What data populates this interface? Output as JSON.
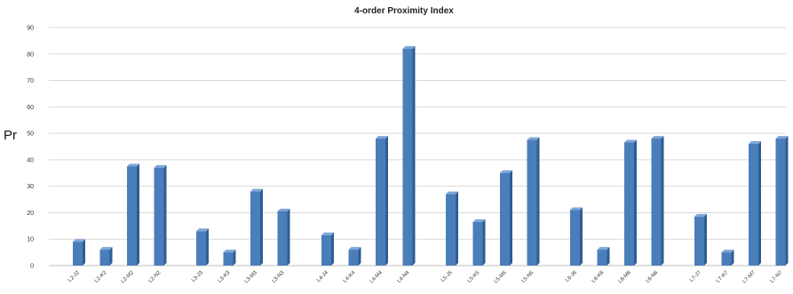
{
  "chart_data": {
    "type": "bar",
    "title": "4-order Proximity Index",
    "ylabel": "Pr",
    "xlabel": "",
    "ylim": [
      0,
      90
    ],
    "yticks": [
      0,
      10,
      20,
      30,
      40,
      50,
      60,
      70,
      80,
      90
    ],
    "grid": true,
    "legend": "none",
    "bar_color": "#4a7ebb",
    "groups": [
      {
        "categories": [
          "L2-J2",
          "L2-K2",
          "L2-M2",
          "L2-N2"
        ],
        "values": [
          9,
          6,
          37.5,
          37
        ]
      },
      {
        "categories": [
          "L3-J3",
          "L3-K3",
          "L3-M3",
          "L3-N3"
        ],
        "values": [
          13,
          5,
          28,
          20.5
        ]
      },
      {
        "categories": [
          "L4-J4",
          "L4-K4",
          "L4-M4",
          "L4-N4"
        ],
        "values": [
          11.5,
          6,
          48,
          82
        ]
      },
      {
        "categories": [
          "L5-J5",
          "L5-K5",
          "L5-M5",
          "L5-N5"
        ],
        "values": [
          27,
          16.5,
          35,
          47.5
        ]
      },
      {
        "categories": [
          "L6-J6",
          "L6-K6",
          "L6-M6",
          "L6-N6"
        ],
        "values": [
          21,
          6,
          46.5,
          48
        ]
      },
      {
        "categories": [
          "L7-J7",
          "L7-K7",
          "L7-M7",
          "L7-N7"
        ],
        "values": [
          18.5,
          5,
          46,
          48
        ]
      }
    ]
  }
}
